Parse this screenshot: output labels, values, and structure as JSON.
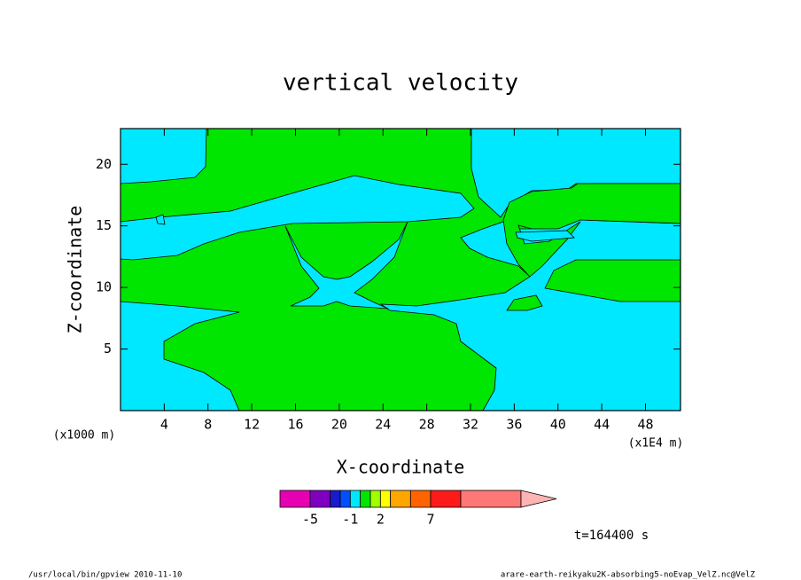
{
  "chart_data": {
    "type": "contour",
    "title": "vertical velocity",
    "x_label": "X-coordinate",
    "y_label": "Z-coordinate",
    "x_unit": "(x1E4 m)",
    "y_unit": "(x1000 m)",
    "xlim": [
      0,
      51.2
    ],
    "xticks": [
      4,
      8,
      12,
      16,
      20,
      24,
      28,
      32,
      36,
      40,
      44,
      48
    ],
    "ylim": [
      0,
      22.9
    ],
    "yticks": [
      5,
      10,
      15,
      20
    ],
    "colorbar": {
      "levels": [
        -8,
        -5,
        -3,
        -2,
        -1,
        0,
        1,
        2,
        3,
        5,
        7,
        10,
        16
      ],
      "colors": [
        "#e600b4",
        "#8000c0",
        "#1a1acc",
        "#0050ff",
        "#00e8ff",
        "#00e600",
        "#a0ff00",
        "#ffff00",
        "#ffa500",
        "#ff6400",
        "#ff1a1a",
        "#ff7878",
        "#ffb4b4"
      ],
      "ticks": [
        -5,
        -1,
        2,
        7
      ]
    },
    "annotation": "t=164400 s",
    "footer_left": "/usr/local/bin/gpview  2010-11-10",
    "footer_right": "arare-earth-reikyaku2K-absorbing5-noEvap_VelZ.nc@VelZ"
  }
}
